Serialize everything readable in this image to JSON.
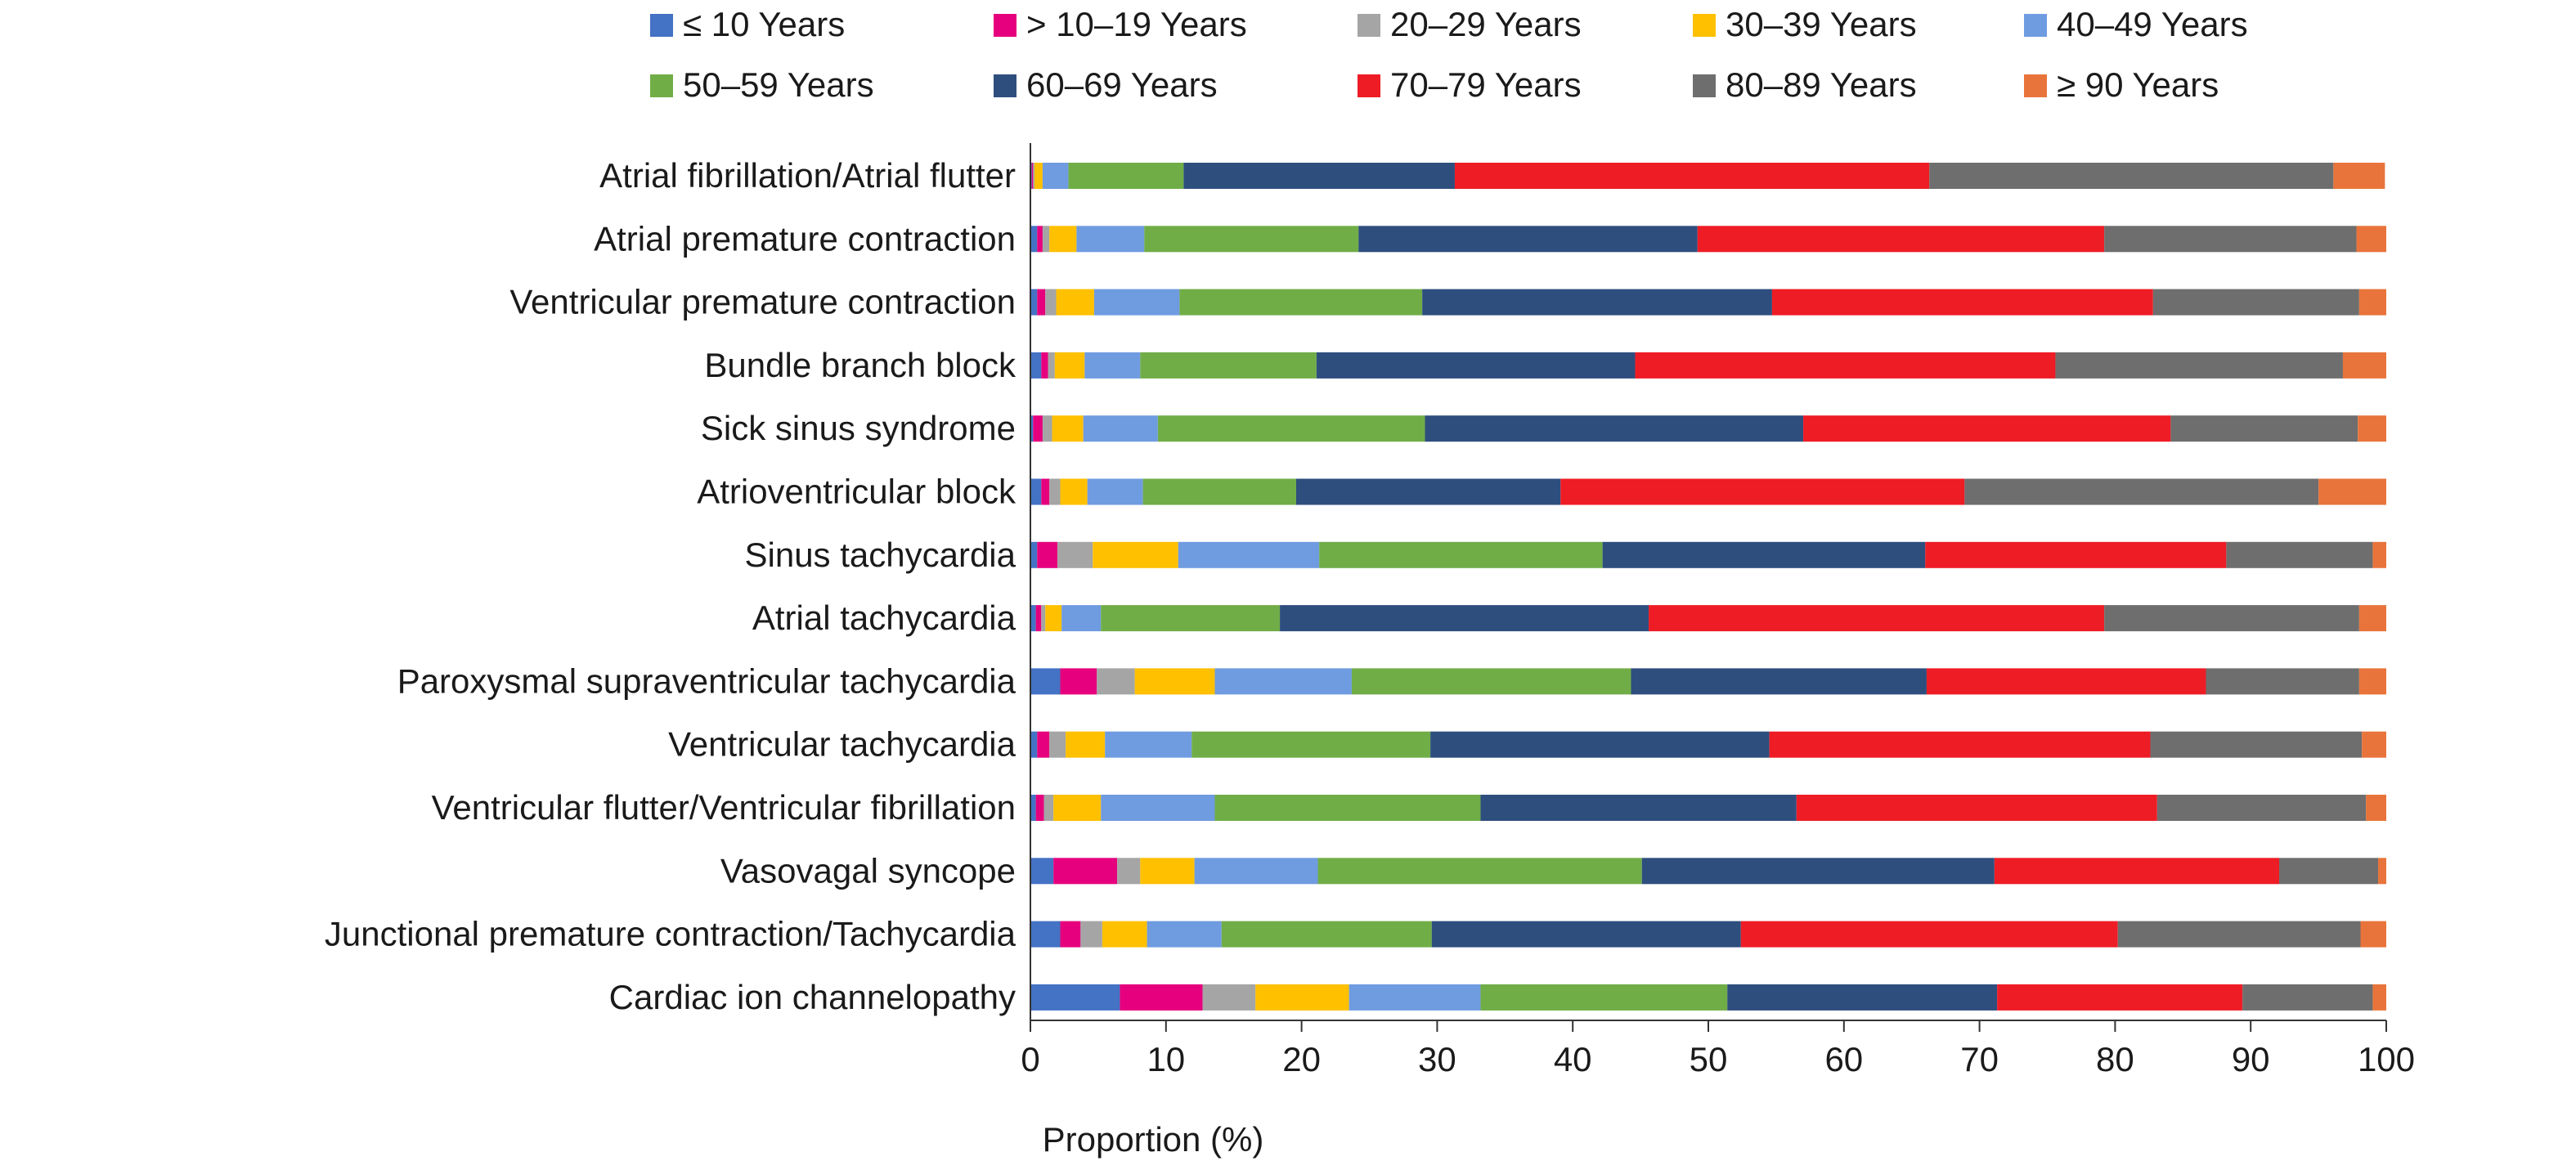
{
  "chart_data": {
    "type": "bar",
    "orientation": "horizontal",
    "stacked": true,
    "categories": [
      "Atrial fibrillation/Atrial flutter",
      "Atrial premature contraction",
      "Ventricular premature contraction",
      "Bundle branch block",
      "Sick sinus syndrome",
      "Atrioventricular block",
      "Sinus tachycardia",
      "Atrial tachycardia",
      "Paroxysmal supraventricular tachycardia",
      "Ventricular tachycardia",
      "Ventricular flutter/Ventricular fibrillation",
      "Vasovagal syncope",
      "Junctional premature contraction/Tachycardia",
      "Cardiac ion channelopathy"
    ],
    "series": [
      {
        "name": "≤ 10 Years",
        "color": "#4472C4",
        "values": [
          0.1,
          0.5,
          0.5,
          0.8,
          0.2,
          0.8,
          0.5,
          0.4,
          2.2,
          0.5,
          0.4,
          1.7,
          2.2,
          6.6
        ]
      },
      {
        "name": "> 10–19 Years",
        "color": "#E6007E",
        "values": [
          0.1,
          0.4,
          0.6,
          0.5,
          0.7,
          0.6,
          1.5,
          0.4,
          2.7,
          0.9,
          0.6,
          4.7,
          1.5,
          6.1
        ]
      },
      {
        "name": "20–29 Years",
        "color": "#A5A5A5",
        "values": [
          0.1,
          0.5,
          0.8,
          0.5,
          0.7,
          0.8,
          2.6,
          0.3,
          2.8,
          1.2,
          0.7,
          1.7,
          1.6,
          3.9
        ]
      },
      {
        "name": "30–39 Years",
        "color": "#FFC000",
        "values": [
          0.6,
          2.0,
          2.8,
          2.2,
          2.3,
          2.0,
          6.3,
          1.2,
          5.9,
          2.9,
          3.5,
          4.0,
          3.3,
          6.9
        ]
      },
      {
        "name": "40–49 Years",
        "color": "#6F9BE0",
        "values": [
          1.9,
          5.0,
          6.3,
          4.1,
          5.5,
          4.1,
          10.4,
          2.9,
          10.1,
          6.4,
          8.4,
          9.1,
          5.5,
          9.7
        ]
      },
      {
        "name": "50–59 Years",
        "color": "#70AD47",
        "values": [
          8.5,
          15.8,
          17.9,
          13.0,
          19.7,
          11.3,
          20.9,
          13.2,
          20.6,
          17.6,
          19.6,
          23.9,
          15.5,
          18.2
        ]
      },
      {
        "name": "60–69 Years",
        "color": "#2E4E7E",
        "values": [
          20.0,
          25.0,
          25.8,
          23.5,
          27.9,
          19.5,
          23.8,
          27.2,
          21.8,
          25.0,
          23.3,
          26.0,
          22.8,
          19.9
        ]
      },
      {
        "name": "70–79 Years",
        "color": "#EE1C25",
        "values": [
          35.0,
          30.0,
          28.1,
          31.0,
          27.1,
          29.8,
          22.2,
          33.6,
          20.6,
          28.1,
          26.6,
          21.0,
          27.8,
          18.1
        ]
      },
      {
        "name": "80–89 Years",
        "color": "#6E6E6E",
        "values": [
          29.8,
          18.6,
          15.2,
          21.2,
          13.8,
          26.1,
          10.8,
          18.8,
          11.3,
          15.6,
          15.4,
          7.3,
          17.9,
          9.6
        ]
      },
      {
        "name": "≥ 90 Years",
        "color": "#E8743B",
        "values": [
          3.8,
          2.2,
          2.0,
          3.2,
          2.1,
          5.0,
          1.0,
          2.0,
          2.0,
          1.8,
          1.5,
          0.6,
          1.9,
          1.0
        ]
      }
    ],
    "xlabel": "Proportion (%)",
    "xlim": [
      0,
      100
    ],
    "xticks": [
      0,
      10,
      20,
      30,
      40,
      50,
      60,
      70,
      80,
      90,
      100
    ],
    "legend_position": "top",
    "grid": false
  }
}
